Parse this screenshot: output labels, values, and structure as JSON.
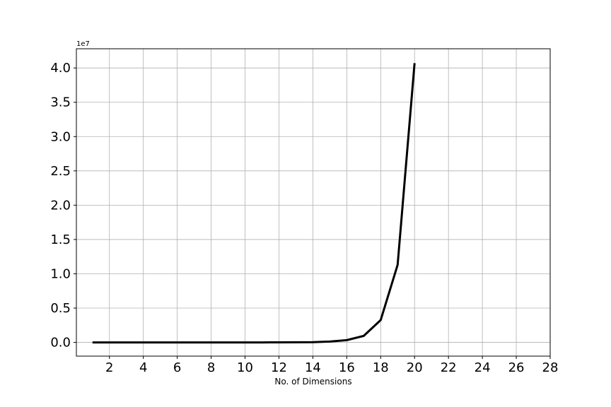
{
  "chart_data": {
    "type": "line",
    "title": "",
    "xlabel": "No. of Dimensions",
    "ylabel": "",
    "y_offset_label": "1e7",
    "y_scale_factor": 10000000,
    "xlim": [
      0.05,
      28
    ],
    "ylim": [
      -2000000,
      42800000
    ],
    "grid": true,
    "x_ticks": [
      2,
      4,
      6,
      8,
      10,
      12,
      14,
      16,
      18,
      20,
      22,
      24,
      26,
      28
    ],
    "x_tick_labels": [
      "2",
      "4",
      "6",
      "8",
      "10",
      "12",
      "14",
      "16",
      "18",
      "20",
      "22",
      "24",
      "26",
      "28"
    ],
    "y_ticks": [
      0,
      5000000,
      10000000,
      15000000,
      20000000,
      25000000,
      30000000,
      35000000,
      40000000
    ],
    "y_tick_labels": [
      "0.0",
      "0.5",
      "1.0",
      "1.5",
      "2.0",
      "2.5",
      "3.0",
      "3.5",
      "4.0"
    ],
    "line_color": "#000000",
    "series": [
      {
        "x": [
          1,
          2,
          3,
          4,
          5,
          6,
          7,
          8,
          9,
          10,
          11,
          12,
          13,
          14,
          15,
          16,
          17,
          18,
          19,
          20
        ],
        "values": [
          0,
          0,
          0,
          0,
          0,
          0,
          0,
          0,
          0,
          0,
          0,
          5000,
          15000,
          40000,
          120000,
          330000,
          950000,
          3250000,
          11300000,
          40700000
        ]
      }
    ]
  }
}
